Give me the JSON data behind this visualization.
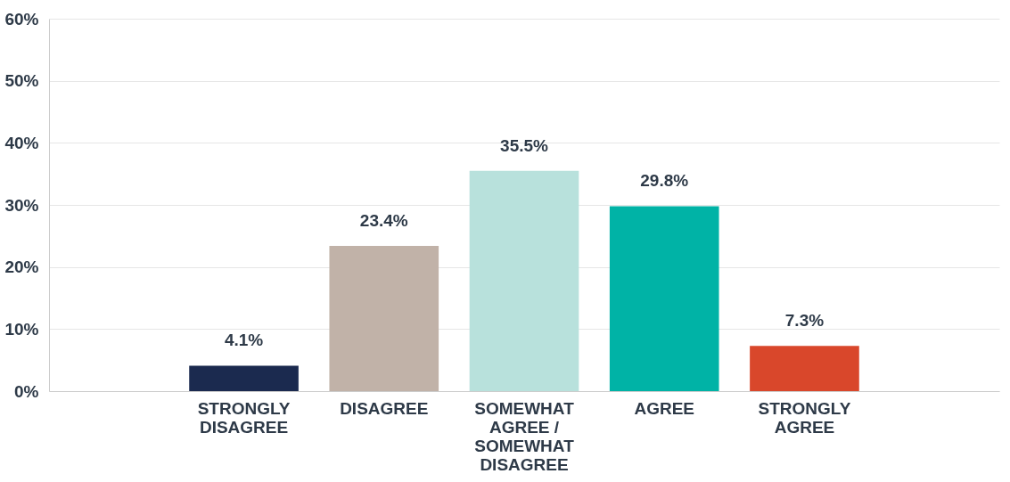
{
  "chart_data": {
    "type": "bar",
    "categories": [
      "STRONGLY DISAGREE",
      "DISAGREE",
      "SOMEWHAT AGREE / SOMEWHAT DISAGREE",
      "AGREE",
      "STRONGLY AGREE"
    ],
    "values": [
      4.1,
      23.4,
      35.5,
      29.8,
      7.3
    ],
    "colors": [
      "#1b2a4f",
      "#c1b2a8",
      "#b8e1dc",
      "#00b3a6",
      "#d9472b"
    ],
    "value_labels": [
      "4.1%",
      "23.4%",
      "35.5%",
      "29.8%",
      "7.3%"
    ],
    "ylim": [
      0,
      60
    ],
    "yticks": [
      {
        "value": 0,
        "label": "0%"
      },
      {
        "value": 10,
        "label": "10%"
      },
      {
        "value": 20,
        "label": "20%"
      },
      {
        "value": 30,
        "label": "30%"
      },
      {
        "value": 40,
        "label": "40%"
      },
      {
        "value": 50,
        "label": "50%"
      },
      {
        "value": 60,
        "label": "60%"
      }
    ],
    "grid": "y"
  }
}
